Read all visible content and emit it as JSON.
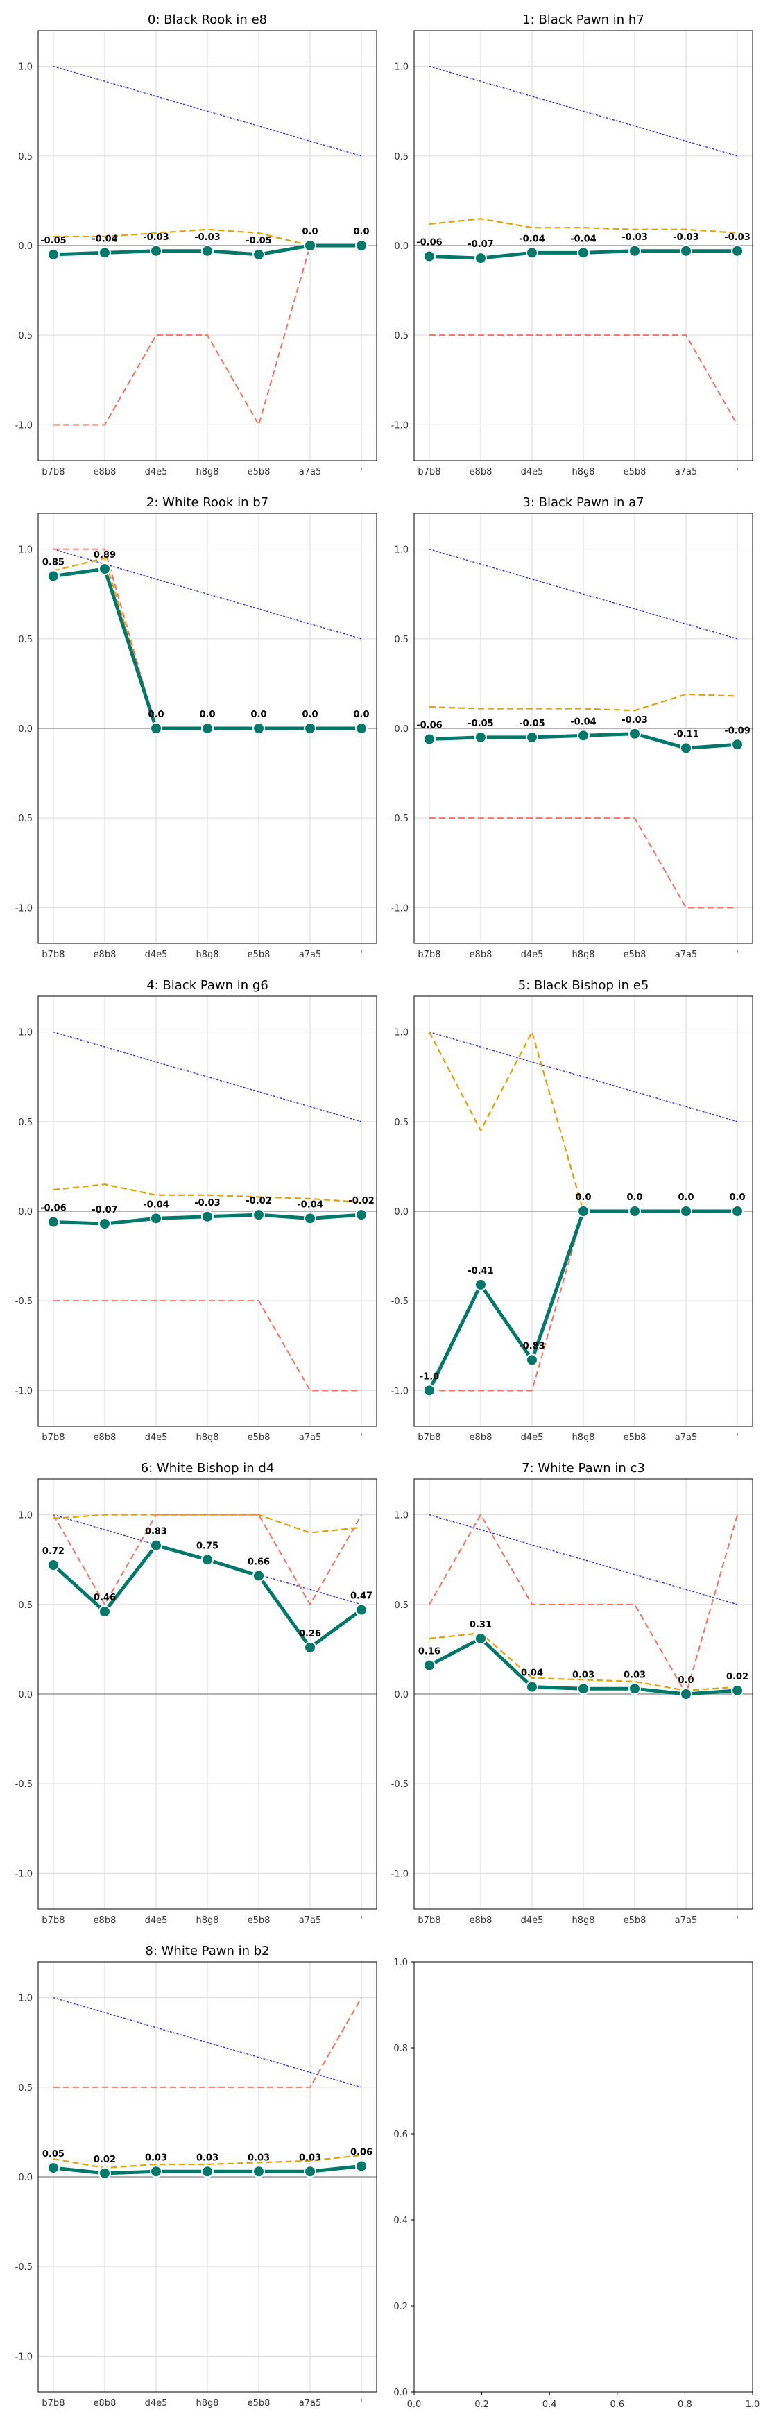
{
  "figure": {
    "colors": {
      "main_line": "#00796b",
      "main_marker_edge": "#ffffff",
      "orange_dashed": "#e6a000",
      "red_dashed": "#ff6e5a",
      "blue_dotted": "#2222ee",
      "zero_line": "#999999",
      "grid": "#d9d9d9"
    },
    "series_styles": {
      "main": "solid thick teal line with white-edged circle markers and bold value labels",
      "orange": "dashed",
      "red": "dashed",
      "blue": "dotted"
    }
  },
  "chart_data": [
    {
      "type": "line",
      "title": "0: Black Rook in e8",
      "categories": [
        "b7b8",
        "e8b8",
        "d4e5",
        "h8g8",
        "e5b8",
        "a7a5",
        "'"
      ],
      "ylim": [
        -1.2,
        1.2
      ],
      "yticks": [
        "1.0",
        "0.5",
        "0.0",
        "-0.5",
        "-1.0"
      ],
      "grid": true,
      "series": [
        {
          "style": "main",
          "values": [
            -0.05,
            -0.04,
            -0.03,
            -0.03,
            -0.05,
            0.0,
            0.0
          ],
          "labels": [
            "-0.05",
            "-0.04",
            "-0.03",
            "-0.03",
            "-0.05",
            "0.0",
            "0.0"
          ]
        },
        {
          "style": "orange",
          "values": [
            0.05,
            0.05,
            0.07,
            0.09,
            0.07,
            0.0,
            0.0
          ]
        },
        {
          "style": "red",
          "values": [
            -1.0,
            -1.0,
            -0.5,
            -0.5,
            -1.0,
            0.0,
            0.0
          ]
        },
        {
          "style": "blue",
          "values": [
            1.0,
            0.917,
            0.833,
            0.75,
            0.667,
            0.583,
            0.5
          ]
        }
      ]
    },
    {
      "type": "line",
      "title": "1: Black Pawn in h7",
      "categories": [
        "b7b8",
        "e8b8",
        "d4e5",
        "h8g8",
        "e5b8",
        "a7a5",
        "'"
      ],
      "ylim": [
        -1.2,
        1.2
      ],
      "yticks": [
        "1.0",
        "0.5",
        "0.0",
        "-0.5",
        "-1.0"
      ],
      "grid": true,
      "series": [
        {
          "style": "main",
          "values": [
            -0.06,
            -0.07,
            -0.04,
            -0.04,
            -0.03,
            -0.03,
            -0.03
          ],
          "labels": [
            "-0.06",
            "-0.07",
            "-0.04",
            "-0.04",
            "-0.03",
            "-0.03",
            "-0.03"
          ]
        },
        {
          "style": "orange",
          "values": [
            0.12,
            0.15,
            0.1,
            0.1,
            0.09,
            0.09,
            0.07
          ]
        },
        {
          "style": "red",
          "values": [
            -0.5,
            -0.5,
            -0.5,
            -0.5,
            -0.5,
            -0.5,
            -1.0
          ]
        },
        {
          "style": "blue",
          "values": [
            1.0,
            0.917,
            0.833,
            0.75,
            0.667,
            0.583,
            0.5
          ]
        }
      ]
    },
    {
      "type": "line",
      "title": "2: White Rook in b7",
      "categories": [
        "b7b8",
        "e8b8",
        "d4e5",
        "h8g8",
        "e5b8",
        "a7a5",
        "'"
      ],
      "ylim": [
        -1.2,
        1.2
      ],
      "yticks": [
        "1.0",
        "0.5",
        "0.0",
        "-0.5",
        "-1.0"
      ],
      "grid": true,
      "series": [
        {
          "style": "main",
          "values": [
            0.85,
            0.89,
            0.0,
            0.0,
            0.0,
            0.0,
            0.0
          ],
          "labels": [
            "0.85",
            "0.89",
            "0.0",
            "0.0",
            "0.0",
            "0.0",
            "0.0"
          ]
        },
        {
          "style": "orange",
          "values": [
            0.88,
            0.95,
            0.0,
            0.0,
            0.0,
            0.0,
            0.0
          ]
        },
        {
          "style": "red",
          "values": [
            1.0,
            1.0,
            0.0,
            0.0,
            0.0,
            0.0,
            0.0
          ]
        },
        {
          "style": "blue",
          "values": [
            1.0,
            0.917,
            0.833,
            0.75,
            0.667,
            0.583,
            0.5
          ]
        }
      ]
    },
    {
      "type": "line",
      "title": "3: Black Pawn in a7",
      "categories": [
        "b7b8",
        "e8b8",
        "d4e5",
        "h8g8",
        "e5b8",
        "a7a5",
        "'"
      ],
      "ylim": [
        -1.2,
        1.2
      ],
      "yticks": [
        "1.0",
        "0.5",
        "0.0",
        "-0.5",
        "-1.0"
      ],
      "grid": true,
      "series": [
        {
          "style": "main",
          "values": [
            -0.06,
            -0.05,
            -0.05,
            -0.04,
            -0.03,
            -0.11,
            -0.09
          ],
          "labels": [
            "-0.06",
            "-0.05",
            "-0.05",
            "-0.04",
            "-0.03",
            "-0.11",
            "-0.09"
          ]
        },
        {
          "style": "orange",
          "values": [
            0.12,
            0.11,
            0.11,
            0.11,
            0.1,
            0.19,
            0.18
          ]
        },
        {
          "style": "red",
          "values": [
            -0.5,
            -0.5,
            -0.5,
            -0.5,
            -0.5,
            -1.0,
            -1.0
          ]
        },
        {
          "style": "blue",
          "values": [
            1.0,
            0.917,
            0.833,
            0.75,
            0.667,
            0.583,
            0.5
          ]
        }
      ]
    },
    {
      "type": "line",
      "title": "4: Black Pawn in g6",
      "categories": [
        "b7b8",
        "e8b8",
        "d4e5",
        "h8g8",
        "e5b8",
        "a7a5",
        "'"
      ],
      "ylim": [
        -1.2,
        1.2
      ],
      "yticks": [
        "1.0",
        "0.5",
        "0.0",
        "-0.5",
        "-1.0"
      ],
      "grid": true,
      "series": [
        {
          "style": "main",
          "values": [
            -0.06,
            -0.07,
            -0.04,
            -0.03,
            -0.02,
            -0.04,
            -0.02
          ],
          "labels": [
            "-0.06",
            "-0.07",
            "-0.04",
            "-0.03",
            "-0.02",
            "-0.04",
            "-0.02"
          ]
        },
        {
          "style": "orange",
          "values": [
            0.12,
            0.15,
            0.09,
            0.09,
            0.08,
            0.07,
            0.05
          ]
        },
        {
          "style": "red",
          "values": [
            -0.5,
            -0.5,
            -0.5,
            -0.5,
            -0.5,
            -1.0,
            -1.0
          ]
        },
        {
          "style": "blue",
          "values": [
            1.0,
            0.917,
            0.833,
            0.75,
            0.667,
            0.583,
            0.5
          ]
        }
      ]
    },
    {
      "type": "line",
      "title": "5: Black Bishop in e5",
      "categories": [
        "b7b8",
        "e8b8",
        "d4e5",
        "h8g8",
        "e5b8",
        "a7a5",
        "'"
      ],
      "ylim": [
        -1.2,
        1.2
      ],
      "yticks": [
        "1.0",
        "0.5",
        "0.0",
        "-0.5",
        "-1.0"
      ],
      "grid": true,
      "series": [
        {
          "style": "main",
          "values": [
            -1.0,
            -0.41,
            -0.83,
            0.0,
            0.0,
            0.0,
            0.0
          ],
          "labels": [
            "-1.0",
            "-0.41",
            "-0.83",
            "0.0",
            "0.0",
            "0.0",
            "0.0"
          ]
        },
        {
          "style": "orange",
          "values": [
            1.0,
            0.45,
            1.0,
            0.0,
            0.0,
            0.0,
            0.0
          ]
        },
        {
          "style": "red",
          "values": [
            -1.0,
            -1.0,
            -1.0,
            0.0,
            0.0,
            0.0,
            0.0
          ]
        },
        {
          "style": "blue",
          "values": [
            1.0,
            0.917,
            0.833,
            0.75,
            0.667,
            0.583,
            0.5
          ]
        }
      ]
    },
    {
      "type": "line",
      "title": "6: White Bishop in d4",
      "categories": [
        "b7b8",
        "e8b8",
        "d4e5",
        "h8g8",
        "e5b8",
        "a7a5",
        "'"
      ],
      "ylim": [
        -1.2,
        1.2
      ],
      "yticks": [
        "1.0",
        "0.5",
        "0.0",
        "-0.5",
        "-1.0"
      ],
      "grid": true,
      "series": [
        {
          "style": "main",
          "values": [
            0.72,
            0.46,
            0.83,
            0.75,
            0.66,
            0.26,
            0.47
          ],
          "labels": [
            "0.72",
            "0.46",
            "0.83",
            "0.75",
            "0.66",
            "0.26",
            "0.47"
          ]
        },
        {
          "style": "orange",
          "values": [
            0.98,
            1.0,
            1.0,
            1.0,
            1.0,
            0.9,
            0.93
          ]
        },
        {
          "style": "red",
          "values": [
            1.0,
            0.5,
            1.0,
            1.0,
            1.0,
            0.5,
            1.0
          ]
        },
        {
          "style": "blue",
          "values": [
            1.0,
            0.917,
            0.833,
            0.75,
            0.667,
            0.583,
            0.5
          ]
        }
      ]
    },
    {
      "type": "line",
      "title": "7: White Pawn in c3",
      "categories": [
        "b7b8",
        "e8b8",
        "d4e5",
        "h8g8",
        "e5b8",
        "a7a5",
        "'"
      ],
      "ylim": [
        -1.2,
        1.2
      ],
      "yticks": [
        "1.0",
        "0.5",
        "0.0",
        "-0.5",
        "-1.0"
      ],
      "grid": true,
      "series": [
        {
          "style": "main",
          "values": [
            0.16,
            0.31,
            0.04,
            0.03,
            0.03,
            0.0,
            0.02
          ],
          "labels": [
            "0.16",
            "0.31",
            "0.04",
            "0.03",
            "0.03",
            "0.0",
            "0.02"
          ]
        },
        {
          "style": "orange",
          "values": [
            0.31,
            0.34,
            0.09,
            0.08,
            0.07,
            0.02,
            0.04
          ]
        },
        {
          "style": "red",
          "values": [
            0.5,
            1.0,
            0.5,
            0.5,
            0.5,
            0.0,
            1.0
          ]
        },
        {
          "style": "blue",
          "values": [
            1.0,
            0.917,
            0.833,
            0.75,
            0.667,
            0.583,
            0.5
          ]
        }
      ]
    },
    {
      "type": "line",
      "title": "8: White Pawn in b2",
      "categories": [
        "b7b8",
        "e8b8",
        "d4e5",
        "h8g8",
        "e5b8",
        "a7a5",
        "'"
      ],
      "ylim": [
        -1.2,
        1.2
      ],
      "yticks": [
        "1.0",
        "0.5",
        "0.0",
        "-0.5",
        "-1.0"
      ],
      "grid": true,
      "series": [
        {
          "style": "main",
          "values": [
            0.05,
            0.02,
            0.03,
            0.03,
            0.03,
            0.03,
            0.06
          ],
          "labels": [
            "0.05",
            "0.02",
            "0.03",
            "0.03",
            "0.03",
            "0.03",
            "0.06"
          ]
        },
        {
          "style": "orange",
          "values": [
            0.1,
            0.05,
            0.07,
            0.07,
            0.08,
            0.09,
            0.12
          ]
        },
        {
          "style": "red",
          "values": [
            0.5,
            0.5,
            0.5,
            0.5,
            0.5,
            0.5,
            1.0
          ]
        },
        {
          "style": "blue",
          "values": [
            1.0,
            0.917,
            0.833,
            0.75,
            0.667,
            0.583,
            0.5
          ]
        }
      ]
    },
    {
      "type": "line",
      "title": "",
      "empty": true,
      "xlim": [
        0,
        1
      ],
      "ylim": [
        0,
        1
      ],
      "xticks": [
        "0.0",
        "0.2",
        "0.4",
        "0.6",
        "0.8",
        "1.0"
      ],
      "yticks": [
        "0.0",
        "0.2",
        "0.4",
        "0.6",
        "0.8",
        "1.0"
      ],
      "grid": false,
      "series": []
    }
  ]
}
